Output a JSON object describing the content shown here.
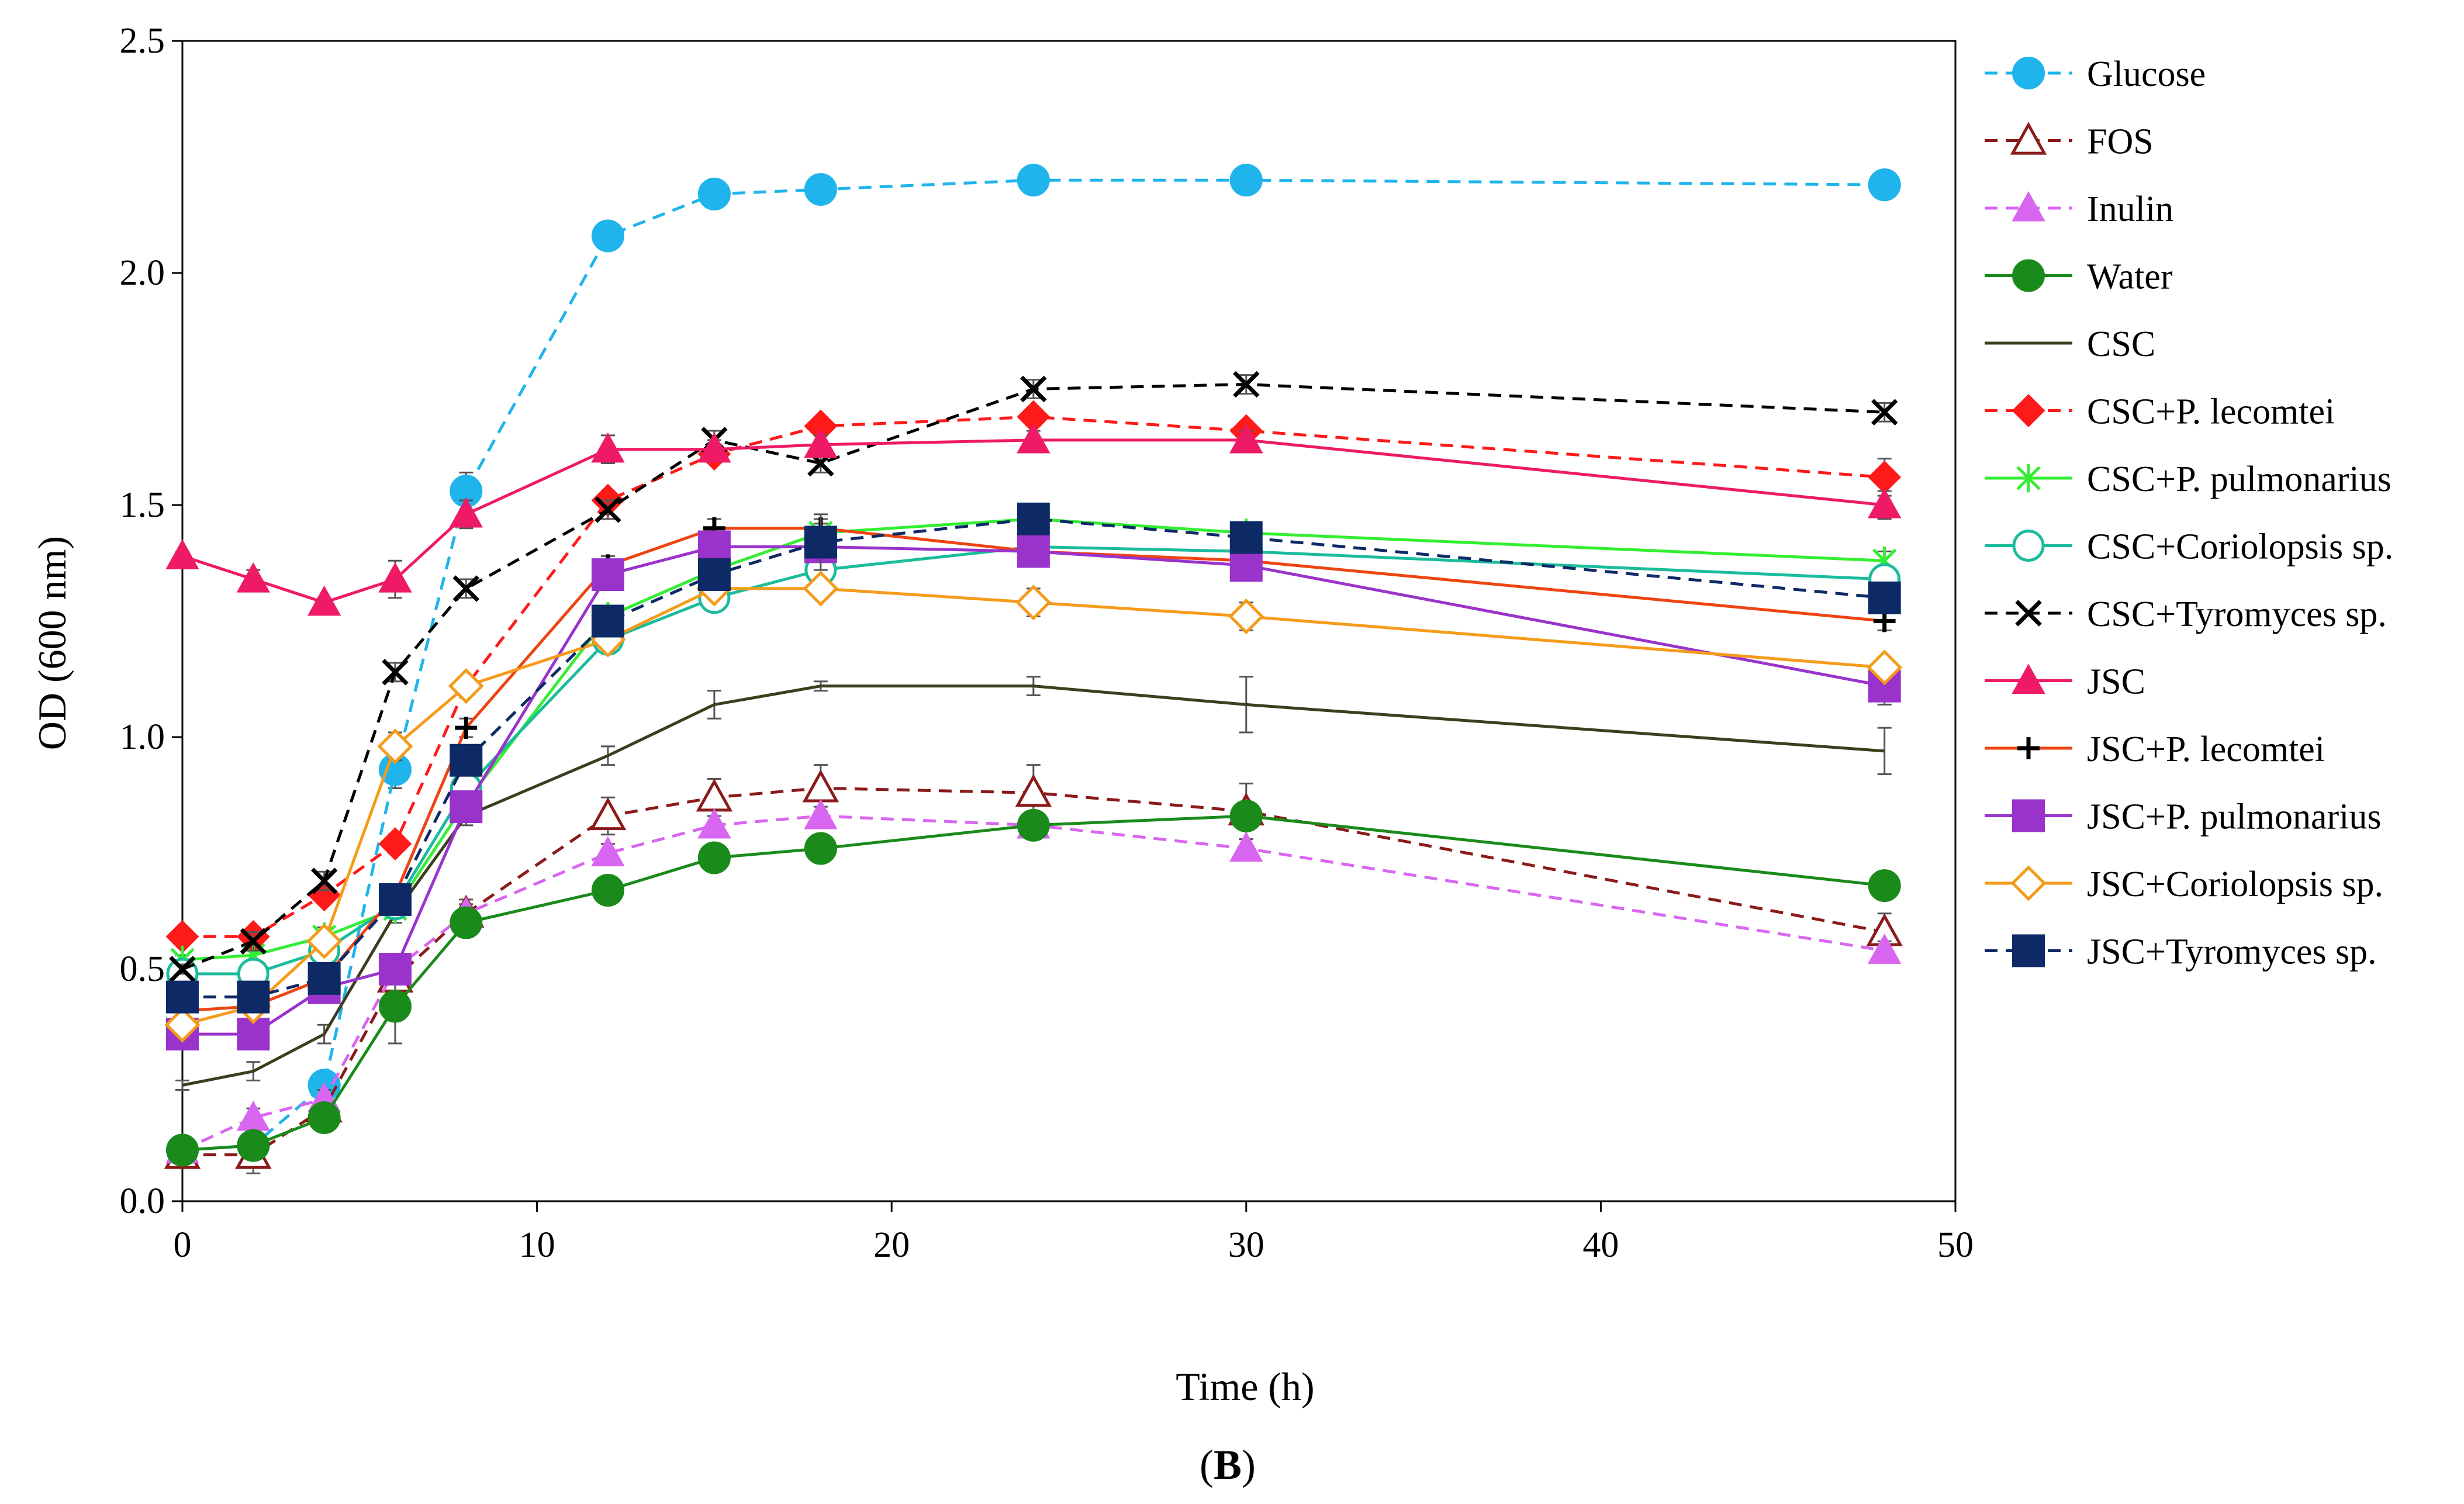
{
  "chart_data": {
    "type": "line",
    "title": "",
    "xlabel": "Time (h)",
    "ylabel": "OD (600 nm)",
    "panel_label": {
      "open": "(",
      "letter": "B",
      "close": ")"
    },
    "xlim": [
      0,
      50
    ],
    "ylim": [
      0,
      2.5
    ],
    "x_ticks": [
      0,
      10,
      20,
      30,
      40,
      50
    ],
    "x_tick_labels": [
      "0",
      "10",
      "20",
      "30",
      "40",
      "50"
    ],
    "y_ticks": [
      0,
      0.5,
      1.0,
      1.5,
      2.0,
      2.5
    ],
    "y_tick_labels": [
      "0.0",
      "0.5",
      "1.0",
      "1.5",
      "2.0",
      "2.5"
    ],
    "grid": false,
    "legend_position": "right",
    "x": [
      0,
      2,
      4,
      6,
      8,
      12,
      15,
      18,
      24,
      30,
      48
    ],
    "series": [
      {
        "name": "Glucose",
        "color": "#1fb4ec",
        "dash": "dashed",
        "marker": "circle-filled",
        "values": [
          0.11,
          0.12,
          0.25,
          0.93,
          1.53,
          2.08,
          2.17,
          2.18,
          2.2,
          2.2,
          2.19
        ],
        "errors": [
          0.01,
          0.01,
          0.02,
          0.04,
          0.04,
          0.03,
          0.01,
          0.01,
          0.02,
          0.01,
          0.01
        ]
      },
      {
        "name": "FOS",
        "color": "#8b1a1a",
        "dash": "dashed",
        "marker": "triangle-open",
        "values": [
          0.1,
          0.1,
          0.2,
          0.48,
          0.62,
          0.83,
          0.87,
          0.89,
          0.88,
          0.84,
          0.58
        ],
        "errors": [
          0.01,
          0.04,
          0.02,
          0.03,
          0.03,
          0.04,
          0.04,
          0.05,
          0.06,
          0.06,
          0.04
        ]
      },
      {
        "name": "Inulin",
        "color": "#d966f0",
        "dash": "dashed",
        "marker": "triangle-filled",
        "values": [
          0.11,
          0.18,
          0.22,
          0.5,
          0.62,
          0.75,
          0.81,
          0.83,
          0.81,
          0.76,
          0.54
        ],
        "errors": [
          0.01,
          0.02,
          0.02,
          0.02,
          0.02,
          0.02,
          0.02,
          0.02,
          0.02,
          0.02,
          0.02
        ]
      },
      {
        "name": "Water",
        "color": "#1a8a1a",
        "dash": "solid",
        "marker": "circle-filled",
        "values": [
          0.11,
          0.12,
          0.18,
          0.42,
          0.6,
          0.67,
          0.74,
          0.76,
          0.81,
          0.83,
          0.68
        ],
        "errors": [
          0.01,
          0.01,
          0.02,
          0.08,
          0.02,
          0.02,
          0.02,
          0.02,
          0.02,
          0.02,
          0.02
        ]
      },
      {
        "name": "CSC",
        "color": "#3d3d1f",
        "dash": "solid",
        "marker": "none",
        "values": [
          0.25,
          0.28,
          0.36,
          0.62,
          0.83,
          0.96,
          1.07,
          1.11,
          1.11,
          1.07,
          0.97
        ],
        "errors": [
          0.01,
          0.02,
          0.02,
          0.02,
          0.02,
          0.02,
          0.03,
          0.01,
          0.02,
          0.06,
          0.05
        ]
      },
      {
        "name": "CSC+P. lecomtei",
        "color": "#ff1a1a",
        "dash": "dashed",
        "marker": "diamond-filled",
        "values": [
          0.57,
          0.57,
          0.66,
          0.77,
          1.11,
          1.51,
          1.61,
          1.67,
          1.69,
          1.66,
          1.56
        ],
        "errors": [
          0.01,
          0.02,
          0.02,
          0.02,
          0.02,
          0.02,
          0.02,
          0.02,
          0.02,
          0.02,
          0.04
        ]
      },
      {
        "name": "CSC+P. pulmonarius",
        "color": "#33ee33",
        "dash": "solid",
        "marker": "star",
        "values": [
          0.52,
          0.53,
          0.57,
          0.63,
          0.86,
          1.26,
          1.36,
          1.44,
          1.47,
          1.44,
          1.38
        ],
        "errors": [
          0.01,
          0.01,
          0.02,
          0.02,
          0.03,
          0.02,
          0.02,
          0.02,
          0.02,
          0.02,
          0.02
        ]
      },
      {
        "name": "CSC+Coriolopsis sp.",
        "color": "#1abc9c",
        "dash": "solid",
        "marker": "circle-open",
        "values": [
          0.49,
          0.49,
          0.54,
          0.64,
          0.89,
          1.21,
          1.3,
          1.36,
          1.41,
          1.4,
          1.34
        ],
        "errors": [
          0.01,
          0.01,
          0.02,
          0.02,
          0.02,
          0.02,
          0.02,
          0.02,
          0.02,
          0.02,
          0.02
        ]
      },
      {
        "name": "CSC+Tyromyces sp.",
        "color": "#000000",
        "dash": "dashed",
        "marker": "x",
        "values": [
          0.5,
          0.56,
          0.69,
          1.14,
          1.32,
          1.49,
          1.64,
          1.59,
          1.75,
          1.76,
          1.7
        ],
        "errors": [
          0.01,
          0.02,
          0.02,
          0.02,
          0.02,
          0.02,
          0.02,
          0.02,
          0.02,
          0.02,
          0.02
        ]
      },
      {
        "name": "JSC",
        "color": "#ee1a66",
        "dash": "solid",
        "marker": "triangle-filled",
        "values": [
          1.39,
          1.34,
          1.29,
          1.34,
          1.48,
          1.62,
          1.62,
          1.63,
          1.64,
          1.64,
          1.5
        ],
        "errors": [
          0.01,
          0.02,
          0.01,
          0.04,
          0.03,
          0.03,
          0.02,
          0.02,
          0.02,
          0.02,
          0.03
        ]
      },
      {
        "name": "JSC+P. lecomtei",
        "color": "#ee4411",
        "dash": "solid",
        "marker": "plus",
        "values": [
          0.41,
          0.42,
          0.48,
          0.66,
          1.02,
          1.37,
          1.45,
          1.45,
          1.4,
          1.38,
          1.25
        ],
        "errors": [
          0.01,
          0.01,
          0.02,
          0.02,
          0.02,
          0.02,
          0.02,
          0.02,
          0.02,
          0.02,
          0.02
        ]
      },
      {
        "name": "JSC+P. pulmonarius",
        "color": "#9933cc",
        "dash": "solid",
        "marker": "square-filled",
        "values": [
          0.36,
          0.36,
          0.46,
          0.5,
          0.85,
          1.35,
          1.41,
          1.41,
          1.4,
          1.37,
          1.11
        ],
        "errors": [
          0.01,
          0.01,
          0.02,
          0.02,
          0.02,
          0.02,
          0.02,
          0.02,
          0.02,
          0.02,
          0.04
        ]
      },
      {
        "name": "JSC+Coriolopsis sp.",
        "color": "#f59b1a",
        "dash": "solid",
        "marker": "diamond-open",
        "values": [
          0.38,
          0.42,
          0.56,
          0.98,
          1.11,
          1.21,
          1.32,
          1.32,
          1.29,
          1.26,
          1.15
        ],
        "errors": [
          0.01,
          0.01,
          0.02,
          0.03,
          0.02,
          0.02,
          0.02,
          0.02,
          0.03,
          0.03,
          0.02
        ]
      },
      {
        "name": "JSC+Tyromyces sp.",
        "color": "#0d2a66",
        "dash": "dashed",
        "marker": "square-filled",
        "values": [
          0.44,
          0.44,
          0.48,
          0.65,
          0.95,
          1.25,
          1.35,
          1.42,
          1.47,
          1.43,
          1.3
        ],
        "errors": [
          0.01,
          0.01,
          0.02,
          0.02,
          0.02,
          0.02,
          0.02,
          0.06,
          0.03,
          0.02,
          0.02
        ]
      }
    ]
  }
}
